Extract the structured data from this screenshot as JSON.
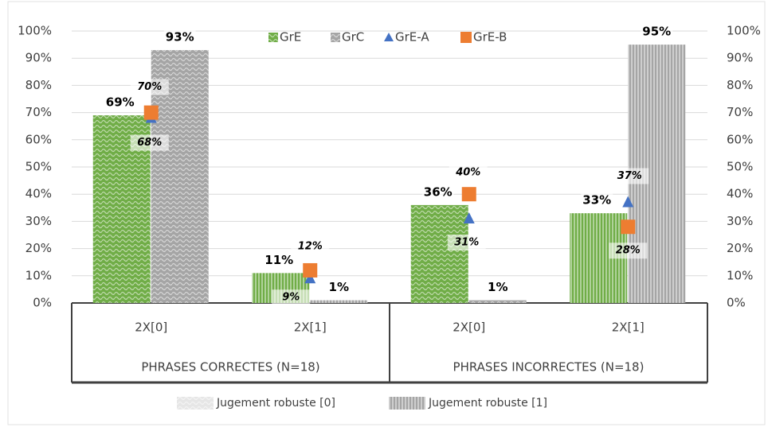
{
  "chart_data": {
    "type": "bar",
    "categories": [
      "2X[0]",
      "2X[1]",
      "2X[0]",
      "2X[1]"
    ],
    "groups": [
      "PHRASES CORRECTES (N=18)",
      "PHRASES INCORRECTES (N=18)"
    ],
    "series": [
      {
        "name": "GrE",
        "color": "#70ad47",
        "kind": "bar",
        "values": [
          69,
          11,
          36,
          33
        ],
        "value_labels": [
          "69%",
          "11%",
          "36%",
          "33%"
        ]
      },
      {
        "name": "GrC",
        "color": "#a5a5a5",
        "kind": "bar",
        "values": [
          93,
          1,
          1,
          95
        ],
        "value_labels": [
          "93%",
          "1%",
          "1%",
          "95%"
        ]
      },
      {
        "name": "GrE-A",
        "color": "#4472c4",
        "kind": "triangle",
        "values": [
          68,
          9,
          31,
          37
        ],
        "value_labels": [
          "68%",
          "9%",
          "31%",
          "37%"
        ]
      },
      {
        "name": "GrE-B",
        "color": "#ed7d31",
        "kind": "square",
        "values": [
          70,
          12,
          40,
          28
        ],
        "value_labels": [
          "70%",
          "12%",
          "40%",
          "28%"
        ]
      }
    ],
    "pattern_legend": [
      "Jugement robuste [0]",
      "Jugement robuste [1]"
    ],
    "ylim": [
      0,
      100
    ],
    "yticks": [
      {
        "value": 0,
        "label": "0%"
      },
      {
        "value": 10,
        "label": "10%"
      },
      {
        "value": 20,
        "label": "20%"
      },
      {
        "value": 30,
        "label": "30%"
      },
      {
        "value": 40,
        "label": "40%"
      },
      {
        "value": 50,
        "label": "50%"
      },
      {
        "value": 60,
        "label": "60%"
      },
      {
        "value": 70,
        "label": "70%"
      },
      {
        "value": 80,
        "label": "80%"
      },
      {
        "value": 90,
        "label": "90%"
      },
      {
        "value": 100,
        "label": "100%"
      }
    ],
    "y2lim": [
      0,
      100
    ],
    "y2ticks": [
      {
        "value": 0,
        "label": "0%"
      },
      {
        "value": 10,
        "label": "10%"
      },
      {
        "value": 20,
        "label": "20%"
      },
      {
        "value": 30,
        "label": "30%"
      },
      {
        "value": 40,
        "label": "40%"
      },
      {
        "value": 50,
        "label": "50%"
      },
      {
        "value": 60,
        "label": "60%"
      },
      {
        "value": 70,
        "label": "70%"
      },
      {
        "value": 80,
        "label": "80%"
      },
      {
        "value": 90,
        "label": "90%"
      },
      {
        "value": 100,
        "label": "100%"
      }
    ],
    "grid": true,
    "legend": "top"
  }
}
